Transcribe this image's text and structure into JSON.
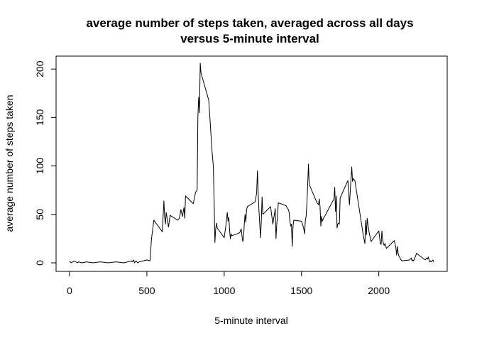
{
  "chart_data": {
    "type": "line",
    "title_line1": "average number of steps taken, averaged across all days",
    "title_line2": "versus 5-minute interval",
    "xlabel": "5-minute interval",
    "ylabel": "average number of steps taken",
    "xlim": [
      0,
      2355
    ],
    "ylim": [
      0,
      206
    ],
    "xticks": [
      0,
      500,
      1000,
      1500,
      2000
    ],
    "xtick_labels": [
      "0",
      "500",
      "1000",
      "1500",
      "2000"
    ],
    "yticks": [
      0,
      50,
      100,
      150,
      200
    ],
    "ytick_labels": [
      "0",
      "50",
      "100",
      "150",
      "200"
    ],
    "grid": false,
    "line_color": "#000000",
    "x": [
      0,
      10,
      20,
      30,
      50,
      60,
      80,
      110,
      150,
      200,
      250,
      300,
      350,
      400,
      405,
      415,
      420,
      430,
      440,
      450,
      500,
      520,
      530,
      545,
      600,
      610,
      615,
      620,
      625,
      640,
      650,
      700,
      710,
      715,
      720,
      730,
      740,
      745,
      750,
      800,
      815,
      825,
      830,
      835,
      840,
      845,
      850,
      900,
      910,
      920,
      930,
      935,
      940,
      945,
      950,
      955,
      1000,
      1010,
      1015,
      1020,
      1025,
      1030,
      1035,
      1040,
      1045,
      1050,
      1100,
      1110,
      1115,
      1120,
      1125,
      1130,
      1135,
      1140,
      1145,
      1150,
      1200,
      1210,
      1215,
      1220,
      1225,
      1230,
      1235,
      1240,
      1245,
      1250,
      1300,
      1310,
      1315,
      1320,
      1325,
      1330,
      1335,
      1340,
      1345,
      1350,
      1400,
      1410,
      1415,
      1420,
      1425,
      1430,
      1435,
      1440,
      1445,
      1450,
      1500,
      1510,
      1515,
      1520,
      1525,
      1530,
      1535,
      1540,
      1545,
      1550,
      1600,
      1610,
      1615,
      1620,
      1625,
      1630,
      1635,
      1640,
      1645,
      1650,
      1700,
      1710,
      1715,
      1720,
      1725,
      1730,
      1735,
      1740,
      1745,
      1750,
      1800,
      1810,
      1815,
      1820,
      1825,
      1830,
      1835,
      1840,
      1845,
      1850,
      1900,
      1910,
      1915,
      1920,
      1925,
      1930,
      1935,
      1940,
      1945,
      1950,
      2000,
      2010,
      2015,
      2020,
      2025,
      2030,
      2035,
      2040,
      2045,
      2050,
      2100,
      2110,
      2115,
      2120,
      2125,
      2130,
      2135,
      2140,
      2145,
      2150,
      2200,
      2210,
      2215,
      2220,
      2225,
      2230,
      2235,
      2240,
      2245,
      2250,
      2300,
      2310,
      2315,
      2320,
      2325,
      2330,
      2335,
      2340,
      2345,
      2350,
      2355
    ],
    "y": [
      2,
      0,
      1,
      2,
      0,
      1,
      0,
      1,
      0,
      1,
      0,
      1,
      0,
      2,
      1,
      3,
      0,
      2,
      0,
      1,
      3,
      2,
      25,
      44,
      32,
      64,
      47,
      40,
      52,
      37,
      49,
      44,
      46,
      50,
      55,
      48,
      57,
      46,
      69,
      61,
      73,
      75,
      151,
      171,
      155,
      206,
      196,
      168,
      144,
      118,
      99,
      62,
      21,
      35,
      41,
      36,
      26,
      37,
      45,
      52,
      43,
      47,
      34,
      25,
      30,
      28,
      31,
      35,
      28,
      22,
      25,
      40,
      50,
      42,
      55,
      58,
      63,
      72,
      95,
      72,
      54,
      40,
      26,
      42,
      68,
      50,
      58,
      46,
      40,
      46,
      50,
      56,
      25,
      40,
      49,
      62,
      59,
      56,
      55,
      52,
      43,
      38,
      40,
      17,
      37,
      44,
      43,
      38,
      35,
      30,
      44,
      48,
      62,
      80,
      102,
      81,
      62,
      60,
      66,
      58,
      38,
      48,
      43,
      45,
      47,
      48,
      63,
      66,
      78,
      53,
      69,
      36,
      40,
      41,
      40,
      67,
      85,
      60,
      73,
      86,
      99,
      84,
      87,
      86,
      85,
      80,
      28,
      20,
      44,
      29,
      46,
      39,
      34,
      29,
      26,
      22,
      33,
      20,
      19,
      33,
      23,
      20,
      18,
      20,
      17,
      15,
      23,
      16,
      8,
      17,
      10,
      7,
      6,
      4,
      3,
      2,
      3,
      5,
      2,
      3,
      2,
      4,
      6,
      8,
      10,
      9,
      3,
      5,
      4,
      6,
      3,
      1,
      2,
      1,
      2,
      3,
      1
    ]
  }
}
